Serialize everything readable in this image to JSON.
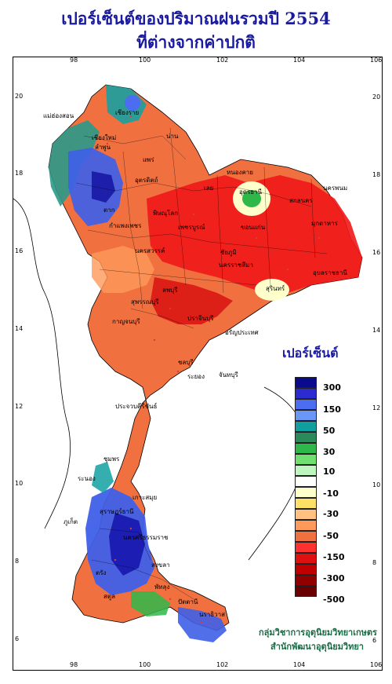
{
  "title_line1": "เปอร์เซ็นต์ของปริมาณฝนรวมปี 2554",
  "title_line2": "ที่ต่างจากค่าปกติ",
  "axis": {
    "top_ticks": [
      "98",
      "100",
      "102",
      "104",
      "106"
    ],
    "bottom_ticks": [
      "98",
      "100",
      "102",
      "104",
      "106"
    ],
    "left_ticks": [
      "20",
      "18",
      "16",
      "14",
      "12",
      "10",
      "8",
      "6"
    ],
    "right_ticks": [
      "20",
      "18",
      "16",
      "14",
      "12",
      "10",
      "8",
      "6"
    ]
  },
  "legend": {
    "title": "เปอร์เซ็นต์",
    "labels": [
      "300",
      "150",
      "50",
      "30",
      "10",
      "-10",
      "-30",
      "-50",
      "-150",
      "-300",
      "-500"
    ],
    "colors": [
      "#0a0a8c",
      "#2b2bd0",
      "#4d6df0",
      "#6a96f5",
      "#10a0a0",
      "#2a8a5a",
      "#2fb84a",
      "#6fe06f",
      "#bff5bf",
      "#ffffff",
      "#ffffcc",
      "#ffe066",
      "#ffc080",
      "#ff9a5a",
      "#f07040",
      "#ff3030",
      "#e01010",
      "#c00000",
      "#900000",
      "#6a0000"
    ]
  },
  "credit_line1": "กลุ่มวิชาการอุตุนิยมวิทยาเกษตร",
  "credit_line2": "สำนักพัฒนาอุตุนิยมวิทยา",
  "cities": [
    "เชียงราย",
    "เชียงใหม่",
    "น่าน",
    "แม่ฮ่องสอน",
    "ลำพูน",
    "แพร่",
    "ตาก",
    "อุตรดิตถ์",
    "หนองคาย",
    "อุดรธานี",
    "นครพนม",
    "สกลนคร",
    "เลย",
    "ขอนแก่น",
    "มุกดาหาร",
    "พิษณุโลก",
    "เพชรบูรณ์",
    "กำแพงเพชร",
    "นครสวรรค์",
    "ชัยภูมิ",
    "อุบลราชธานี",
    "นครราชสีมา",
    "สุรินทร์",
    "ลพบุรี",
    "สุพรรณบุรี",
    "กาญจนบุรี",
    "ปราจีนบุรี",
    "อรัญประเทศ",
    "ชลบุรี",
    "ระยอง",
    "จันทบุรี",
    "ประจวบคีรีขันธ์",
    "ชุมพร",
    "ระนอง",
    "สุราษฎร์ธานี",
    "เกาะสมุย",
    "ภูเก็ต",
    "นครศรีธรรมราช",
    "พัทลุง",
    "สงขลา",
    "ปัตตานี",
    "นราธิวาส",
    "ตรัง",
    "สตูล"
  ]
}
